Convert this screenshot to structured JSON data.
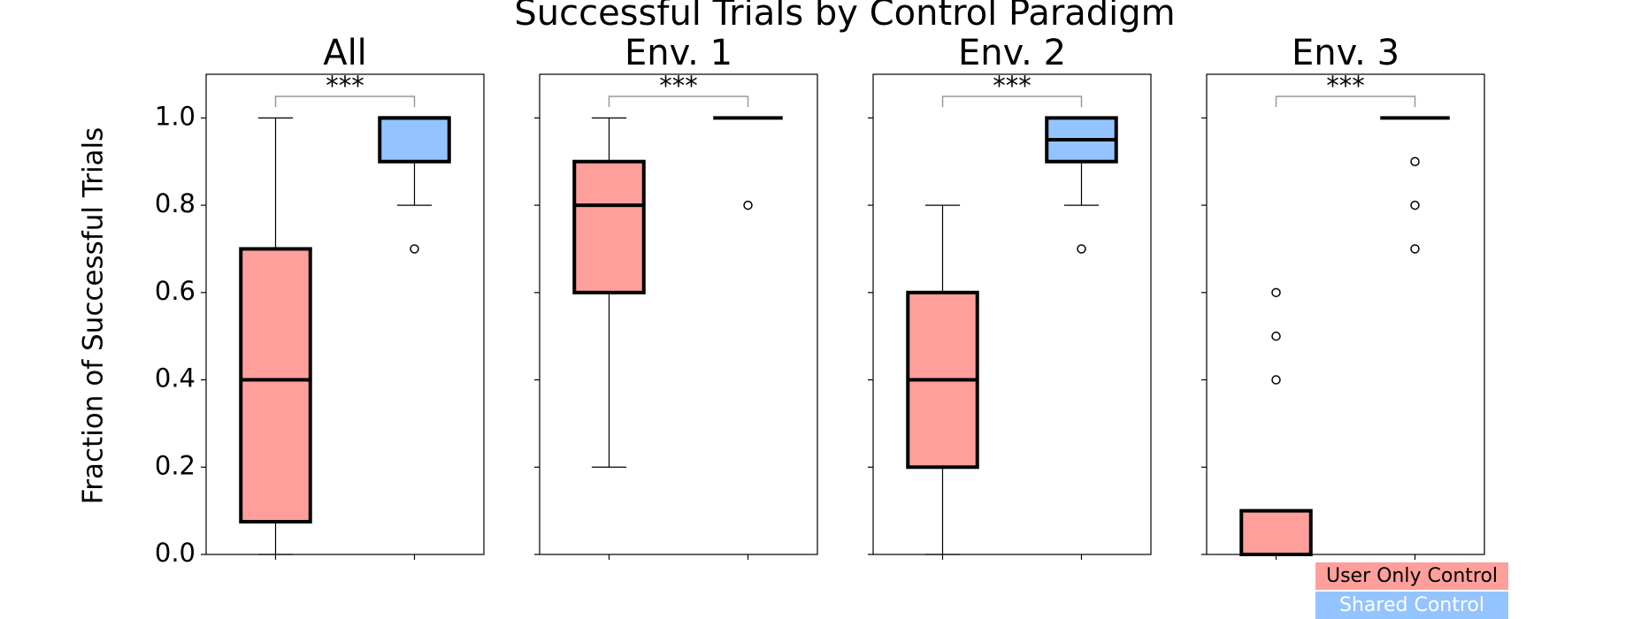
{
  "chart_data": {
    "type": "box",
    "title": "Successful Trials by Control Paradigm",
    "y_label": "Fraction of Successful Trials",
    "ylim": [
      0,
      1.1
    ],
    "yticks": [
      {
        "value": 0,
        "label": "0.0"
      },
      {
        "value": 0.2,
        "label": "0.2"
      },
      {
        "value": 0.4,
        "label": "0.4"
      },
      {
        "value": 0.6,
        "label": "0.6"
      },
      {
        "value": 0.8,
        "label": "0.8"
      },
      {
        "value": 1,
        "label": "1.0"
      }
    ],
    "series": [
      {
        "name": "User Only Control",
        "color": "#ff9f9b"
      },
      {
        "name": "Shared Control",
        "color": "#94c4ff"
      }
    ],
    "panels": [
      {
        "title": "All",
        "annotation": "***",
        "boxes": [
          {
            "whislo": 0,
            "q1": 0.075,
            "med": 0.4,
            "q3": 0.7,
            "whishi": 1.0,
            "fliers": []
          },
          {
            "whislo": 0.8,
            "q1": 0.9,
            "med": 1.0,
            "q3": 1.0,
            "whishi": 1.0,
            "fliers": [
              0.7
            ]
          }
        ]
      },
      {
        "title": "Env. 1",
        "annotation": "***",
        "boxes": [
          {
            "whislo": 0.2,
            "q1": 0.6,
            "med": 0.8,
            "q3": 0.9,
            "whishi": 1.0,
            "fliers": []
          },
          {
            "whislo": 1.0,
            "q1": 1.0,
            "med": 1.0,
            "q3": 1.0,
            "whishi": 1.0,
            "fliers": [
              0.8
            ]
          }
        ]
      },
      {
        "title": "Env. 2",
        "annotation": "***",
        "boxes": [
          {
            "whislo": 0,
            "q1": 0.2,
            "med": 0.4,
            "q3": 0.6,
            "whishi": 0.8,
            "fliers": []
          },
          {
            "whislo": 0.8,
            "q1": 0.9,
            "med": 0.95,
            "q3": 1.0,
            "whishi": 1.0,
            "fliers": [
              0.7
            ]
          }
        ]
      },
      {
        "title": "Env. 3",
        "annotation": "***",
        "boxes": [
          {
            "whislo": 0,
            "q1": 0,
            "med": 0,
            "q3": 0.1,
            "whishi": 0.1,
            "fliers": [
              0.4,
              0.5,
              0.6
            ]
          },
          {
            "whislo": 1.0,
            "q1": 1.0,
            "med": 1.0,
            "q3": 1.0,
            "whishi": 1.0,
            "fliers": [
              0.7,
              0.8,
              0.9
            ]
          }
        ]
      }
    ]
  }
}
